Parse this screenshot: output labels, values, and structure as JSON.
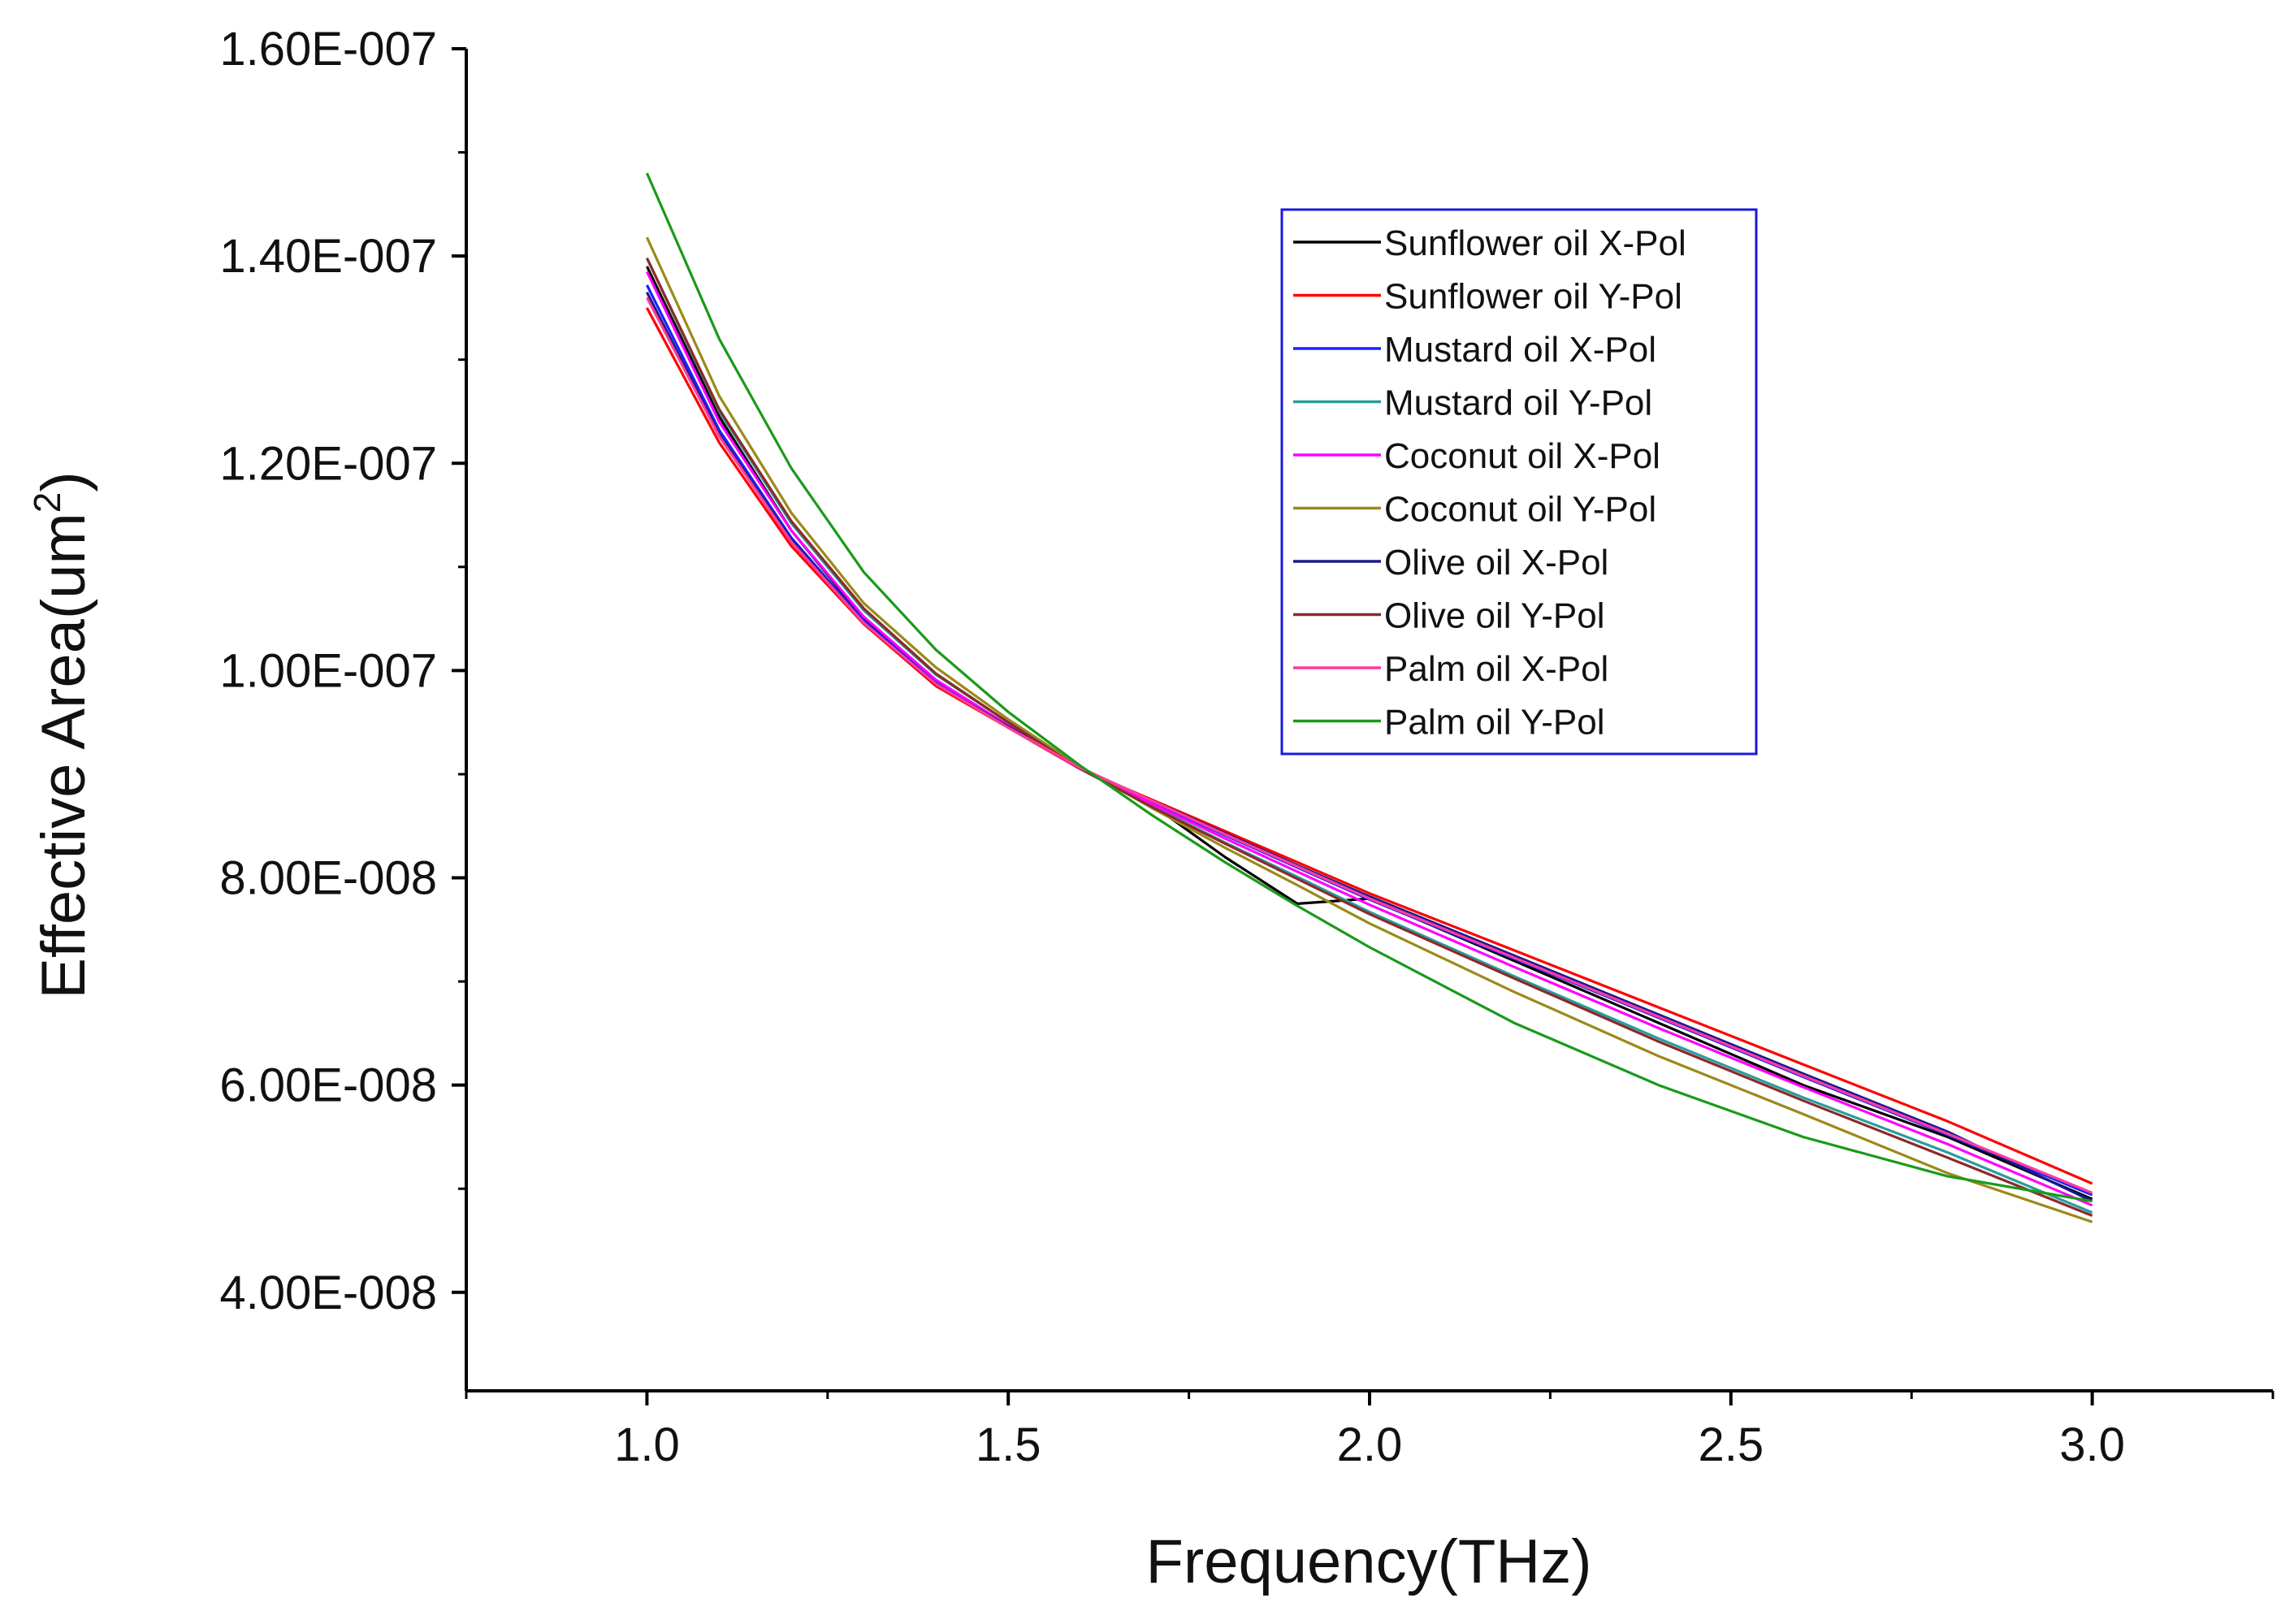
{
  "chart_data": {
    "type": "line",
    "title": "",
    "xlabel": "Frequency(THz)",
    "ylabel": "Effective Area(um",
    "ylabel_superscript": "2",
    "ylabel_suffix": ")",
    "xlim": [
      0.75,
      3.25
    ],
    "ylim": [
      3.05e-08,
      1.6e-07
    ],
    "x_ticks": [
      1.0,
      1.5,
      2.0,
      2.5,
      3.0
    ],
    "x_tick_labels": [
      "1.0",
      "1.5",
      "2.0",
      "2.5",
      "3.0"
    ],
    "y_ticks": [
      4e-08,
      6e-08,
      8e-08,
      1e-07,
      1.2e-07,
      1.4e-07,
      1.6e-07
    ],
    "y_tick_labels": [
      "4.00E-008",
      "6.00E-008",
      "8.00E-008",
      "1.00E-007",
      "1.20E-007",
      "1.40E-007",
      "1.60E-007"
    ],
    "grid": false,
    "legend_position": "top-right",
    "x": [
      1.0,
      1.1,
      1.2,
      1.3,
      1.4,
      1.5,
      1.6,
      1.7,
      1.8,
      1.9,
      2.0,
      2.2,
      2.4,
      2.6,
      2.8,
      3.0
    ],
    "series": [
      {
        "name": "Sunflower oil X-Pol",
        "color": "#000000",
        "values": [
          1.39e-07,
          1.245e-07,
          1.135e-07,
          1.05e-07,
          9.9e-08,
          9.45e-08,
          9.05e-08,
          8.7e-08,
          8.2e-08,
          7.75e-08,
          7.8e-08,
          7.2e-08,
          6.6e-08,
          6e-08,
          5.5e-08,
          4.9e-08
        ]
      },
      {
        "name": "Sunflower oil Y-Pol",
        "color": "#ff0000",
        "values": [
          1.35e-07,
          1.22e-07,
          1.12e-07,
          1.045e-07,
          9.85e-08,
          9.45e-08,
          9.05e-08,
          8.75e-08,
          8.45e-08,
          8.15e-08,
          7.85e-08,
          7.3e-08,
          6.75e-08,
          6.2e-08,
          5.65e-08,
          5.05e-08
        ]
      },
      {
        "name": "Mustard oil X-Pol",
        "color": "#2020ff",
        "values": [
          1.372e-07,
          1.232e-07,
          1.128e-07,
          1.048e-07,
          9.88e-08,
          9.46e-08,
          9.06e-08,
          8.73e-08,
          8.41e-08,
          8.1e-08,
          7.79e-08,
          7.22e-08,
          6.65e-08,
          6.08e-08,
          5.52e-08,
          4.94e-08
        ]
      },
      {
        "name": "Mustard oil Y-Pol",
        "color": "#2a9d9d",
        "values": [
          1.398e-07,
          1.25e-07,
          1.142e-07,
          1.058e-07,
          9.96e-08,
          9.5e-08,
          9.06e-08,
          8.69e-08,
          8.34e-08,
          8.01e-08,
          7.67e-08,
          7.05e-08,
          6.45e-08,
          5.88e-08,
          5.35e-08,
          4.77e-08
        ]
      },
      {
        "name": "Coconut oil X-Pol",
        "color": "#ff00ff",
        "values": [
          1.385e-07,
          1.24e-07,
          1.135e-07,
          1.052e-07,
          9.91e-08,
          9.47e-08,
          9.05e-08,
          8.71e-08,
          8.38e-08,
          8.06e-08,
          7.74e-08,
          7.14e-08,
          6.55e-08,
          5.98e-08,
          5.43e-08,
          4.84e-08
        ]
      },
      {
        "name": "Coconut oil Y-Pol",
        "color": "#9a8a1a",
        "values": [
          1.418e-07,
          1.265e-07,
          1.152e-07,
          1.065e-07,
          1.003e-07,
          9.53e-08,
          9.07e-08,
          8.67e-08,
          8.29e-08,
          7.93e-08,
          7.56e-08,
          6.9e-08,
          6.28e-08,
          5.72e-08,
          5.15e-08,
          4.68e-08
        ]
      },
      {
        "name": "Olive oil X-Pol",
        "color": "#1a1a8c",
        "values": [
          1.365e-07,
          1.228e-07,
          1.126e-07,
          1.046e-07,
          9.87e-08,
          9.46e-08,
          9.06e-08,
          8.74e-08,
          8.43e-08,
          8.12e-08,
          7.82e-08,
          7.25e-08,
          6.68e-08,
          6.11e-08,
          5.55e-08,
          4.88e-08
        ]
      },
      {
        "name": "Olive oil Y-Pol",
        "color": "#8b2a2a",
        "values": [
          1.398e-07,
          1.252e-07,
          1.144e-07,
          1.06e-07,
          9.97e-08,
          9.5e-08,
          9.05e-08,
          8.68e-08,
          8.33e-08,
          7.99e-08,
          7.65e-08,
          7.03e-08,
          6.42e-08,
          5.85e-08,
          5.3e-08,
          4.74e-08
        ]
      },
      {
        "name": "Palm oil X-Pol",
        "color": "#ff3c9e",
        "values": [
          1.36e-07,
          1.226e-07,
          1.124e-07,
          1.046e-07,
          9.87e-08,
          9.45e-08,
          9.06e-08,
          8.74e-08,
          8.42e-08,
          8.11e-08,
          7.8e-08,
          7.23e-08,
          6.66e-08,
          6.09e-08,
          5.53e-08,
          4.96e-08
        ]
      },
      {
        "name": "Palm oil Y-Pol",
        "color": "#1a9a1a",
        "values": [
          1.48e-07,
          1.32e-07,
          1.195e-07,
          1.095e-07,
          1.02e-07,
          9.6e-08,
          9.08e-08,
          8.6e-08,
          8.15e-08,
          7.73e-08,
          7.33e-08,
          6.6e-08,
          6e-08,
          5.5e-08,
          5.12e-08,
          4.88e-08
        ]
      }
    ]
  }
}
